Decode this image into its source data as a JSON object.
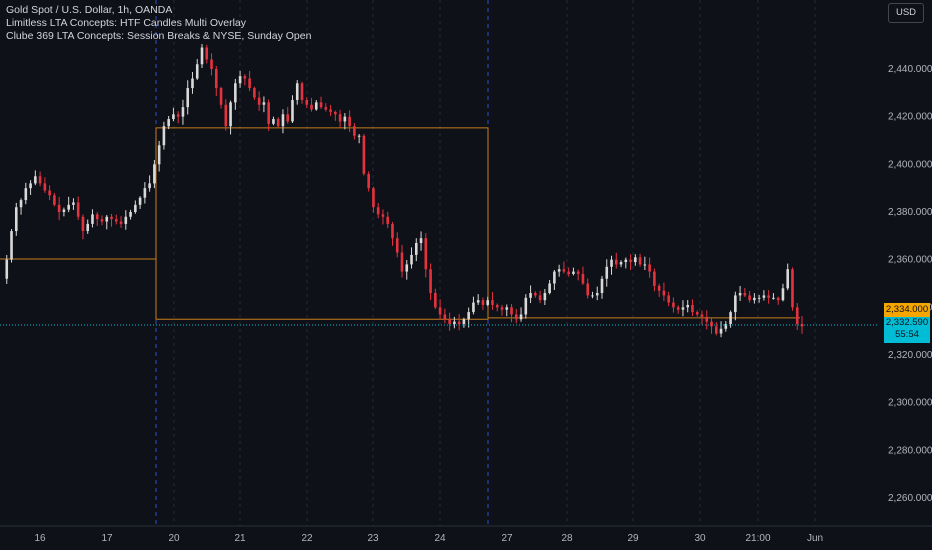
{
  "legend": {
    "line1": "Gold Spot / U.S. Dollar, 1h, OANDA",
    "line2": "Limitless LTA Concepts: HTF Candles Multi Overlay",
    "line3": "Clube 369 LTA Concepts: Session Breaks & NYSE, Sunday Open"
  },
  "currency_button": "USD",
  "price_tags": {
    "last_close": "2,334.000",
    "current_price": "2,332.590",
    "countdown": "55:54"
  },
  "colors": {
    "background": "#0f1118",
    "up": "#d9d9d9",
    "down": "#e5323f",
    "overlay": "#c77d1a",
    "session_break": "#2962ff",
    "current_line": "#00bcd4",
    "last_tag": "#f7a600"
  },
  "chart_data": {
    "type": "candlestick",
    "title": "Gold Spot / U.S. Dollar, 1h, OANDA",
    "y_ticks": [
      2260,
      2280,
      2300,
      2320,
      2340,
      2360,
      2380,
      2400,
      2420,
      2440
    ],
    "y_tick_labels": [
      "2,260.000",
      "2,280.000",
      "2,300.000",
      "2,320.000",
      "2,340.000",
      "2,360.000",
      "2,380.000",
      "2,400.000",
      "2,420.000",
      "2,440.000"
    ],
    "ylim": [
      2252,
      2455
    ],
    "x_ticks": [
      "16",
      "17",
      "20",
      "21",
      "22",
      "23",
      "24",
      "27",
      "28",
      "29",
      "30",
      "21:00",
      "Jun"
    ],
    "current_price": 2332.59,
    "last_close": 2334.0,
    "htf_boxes": [
      {
        "from": "May 16",
        "to": "May 17",
        "high": 2360.3,
        "low": 2360.3
      },
      {
        "from": "May 20",
        "to": "May 24",
        "high": 2415.3,
        "low": 2335.0
      },
      {
        "from": "May 27",
        "to": "May 31",
        "high": 2335.6,
        "low": 2335.6
      }
    ],
    "session_breaks": [
      "May 17",
      "May 24"
    ],
    "price_path": [
      2352,
      2360,
      2372,
      2382,
      2385,
      2390,
      2392,
      2395,
      2392,
      2389,
      2387,
      2383,
      2380,
      2381,
      2383,
      2384,
      2378,
      2372,
      2375,
      2379,
      2377,
      2376,
      2378,
      2377,
      2376,
      2375,
      2378,
      2380,
      2383,
      2386,
      2390,
      2392,
      2400,
      2408,
      2416,
      2419,
      2421,
      2420,
      2424,
      2432,
      2436,
      2442,
      2449,
      2444,
      2440,
      2432,
      2425,
      2416,
      2426,
      2434,
      2437,
      2436,
      2432,
      2428,
      2425,
      2426,
      2417,
      2419,
      2416,
      2421,
      2418,
      2427,
      2434,
      2427,
      2425,
      2423,
      2426,
      2424,
      2423,
      2422,
      2421,
      2418,
      2420,
      2416,
      2412,
      2412,
      2396,
      2390,
      2382,
      2379,
      2378,
      2375,
      2369,
      2363,
      2355,
      2358,
      2362,
      2367,
      2369,
      2356,
      2346,
      2340,
      2337,
      2335,
      2333,
      2334,
      2333,
      2335,
      2338,
      2342,
      2343,
      2341,
      2343,
      2341,
      2340,
      2339,
      2340,
      2337,
      2335,
      2337,
      2344,
      2346,
      2345,
      2343,
      2346,
      2350,
      2355,
      2356,
      2355,
      2354,
      2355,
      2354,
      2350,
      2345,
      2345,
      2346,
      2352,
      2357,
      2360,
      2358,
      2359,
      2360,
      2359,
      2361,
      2358,
      2358,
      2355,
      2349,
      2347,
      2345,
      2342,
      2340,
      2339,
      2340,
      2341,
      2338,
      2337,
      2336,
      2334,
      2332,
      2329,
      2331,
      2333,
      2338,
      2345,
      2346,
      2345,
      2343,
      2344,
      2344,
      2345,
      2344,
      2344,
      2343,
      2348,
      2356,
      2340,
      2333,
      2332
    ]
  }
}
